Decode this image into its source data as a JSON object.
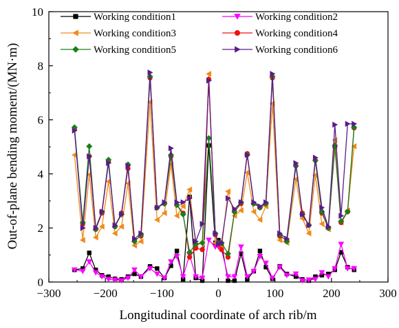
{
  "chart_data": {
    "type": "line",
    "title": "",
    "xlabel": "Longitudinal coordinate of arch rib/m",
    "ylabel": "Out-of-plane bending moment/(MN·m)",
    "xlim": [
      -300,
      300
    ],
    "ylim": [
      0,
      10
    ],
    "xticks": [
      -300,
      -200,
      -100,
      0,
      100,
      200,
      300
    ],
    "yticks": [
      0,
      2,
      4,
      6,
      8,
      10
    ],
    "xtick_labels": [
      "−300",
      "−200",
      "−100",
      "0",
      "100",
      "200",
      "300"
    ],
    "ytick_labels": [
      "0",
      "2",
      "4",
      "6",
      "8",
      "10"
    ],
    "grid": false,
    "legend_position": "top",
    "x": [
      -254.6,
      -240,
      -228.5,
      -217,
      -206,
      -194.5,
      -183,
      -171.5,
      -160,
      -148.5,
      -137,
      -121,
      -108.5,
      -95.5,
      -84,
      -73.5,
      -62.5,
      -51,
      -40,
      -28.5,
      -17,
      -5.5,
      0,
      5.5,
      17,
      28.5,
      40,
      51,
      62.5,
      73.5,
      84,
      95.5,
      108.5,
      121,
      137,
      148.5,
      160,
      171.5,
      183,
      194.5,
      206,
      217,
      228.5,
      240
    ],
    "series": [
      {
        "name": "Working condition1",
        "color": "#000000",
        "marker": "square",
        "values": [
          0.45,
          0.5,
          1.08,
          0.45,
          0.25,
          0.2,
          0.12,
          0.1,
          0.2,
          0.3,
          0.2,
          0.58,
          0.5,
          0.15,
          0.6,
          1.15,
          0.1,
          3.15,
          0.15,
          0.05,
          5.05,
          1.45,
          1.55,
          1.4,
          0.05,
          0.05,
          1.05,
          0.1,
          0.4,
          1.15,
          0.55,
          0.12,
          0.58,
          0.3,
          0.2,
          0.1,
          0.05,
          0.2,
          0.25,
          0.3,
          0.45,
          1.1,
          0.55,
          0.45
        ]
      },
      {
        "name": "Working condition2",
        "color": "#ff00ff",
        "marker": "triangle-down",
        "values": [
          0.45,
          0.4,
          0.75,
          0.35,
          0.2,
          0.1,
          0.08,
          0.05,
          0.15,
          0.45,
          0.2,
          0.5,
          0.3,
          0.15,
          0.75,
          0.95,
          0.2,
          1.0,
          0.2,
          0.15,
          1.55,
          1.3,
          1.3,
          1.2,
          0.2,
          0.2,
          1.3,
          0.2,
          0.4,
          0.95,
          0.7,
          0.15,
          0.55,
          0.25,
          0.3,
          0.05,
          0.08,
          0.1,
          0.35,
          0.2,
          0.5,
          1.4,
          0.5,
          0.5
        ]
      },
      {
        "name": "Working condition3",
        "color": "#f08a1c",
        "marker": "triangle-left",
        "values": [
          4.7,
          1.55,
          3.97,
          1.65,
          2.05,
          3.72,
          1.8,
          2.05,
          3.65,
          1.35,
          1.5,
          6.65,
          2.3,
          2.55,
          4.35,
          2.45,
          2.8,
          3.42,
          1.35,
          1.45,
          7.7,
          1.45,
          1.45,
          1.25,
          3.35,
          2.45,
          2.65,
          4.05,
          2.6,
          2.3,
          2.8,
          6.6,
          1.55,
          1.45,
          3.8,
          2.35,
          1.8,
          3.95,
          2.15,
          1.95,
          5.25,
          2.2,
          2.65,
          5.02
        ]
      },
      {
        "name": "Working condition4",
        "color": "#ee1111",
        "marker": "circle",
        "values": [
          5.65,
          2.15,
          4.65,
          1.95,
          2.55,
          4.45,
          2.05,
          2.55,
          4.2,
          1.55,
          1.7,
          7.55,
          2.75,
          2.9,
          4.65,
          2.85,
          2.55,
          0.92,
          1.25,
          1.2,
          7.5,
          1.75,
          1.4,
          1.2,
          0.92,
          2.6,
          2.9,
          4.75,
          2.9,
          2.75,
          2.9,
          7.55,
          1.7,
          1.55,
          4.3,
          2.55,
          2.1,
          4.5,
          2.55,
          2.0,
          5.0,
          2.2,
          2.6,
          5.7
        ]
      },
      {
        "name": "Working condition5",
        "color": "#1a7f1a",
        "marker": "diamond",
        "values": [
          5.72,
          2.2,
          5.02,
          1.95,
          2.6,
          4.52,
          2.05,
          2.5,
          4.35,
          1.5,
          1.75,
          7.6,
          2.75,
          2.9,
          4.7,
          2.85,
          2.5,
          1.1,
          1.4,
          1.45,
          5.32,
          1.8,
          1.45,
          1.45,
          1.05,
          2.6,
          2.95,
          4.7,
          2.9,
          2.75,
          2.9,
          7.6,
          1.75,
          1.5,
          4.3,
          2.5,
          2.1,
          4.5,
          2.6,
          2.0,
          5.05,
          2.25,
          2.6,
          5.72
        ]
      },
      {
        "name": "Working condition6",
        "color": "#5a1a8c",
        "marker": "triangle-right",
        "values": [
          5.6,
          2.0,
          4.65,
          2.0,
          2.6,
          4.4,
          2.1,
          2.5,
          4.3,
          1.6,
          1.8,
          7.75,
          2.75,
          2.95,
          4.95,
          2.95,
          2.95,
          3.1,
          1.5,
          2.15,
          7.45,
          1.8,
          1.4,
          1.45,
          3.1,
          2.7,
          2.95,
          4.7,
          2.95,
          2.8,
          2.95,
          7.7,
          1.8,
          1.6,
          4.4,
          2.5,
          2.1,
          4.6,
          2.75,
          2.05,
          5.82,
          2.45,
          5.85,
          5.85
        ]
      }
    ]
  }
}
